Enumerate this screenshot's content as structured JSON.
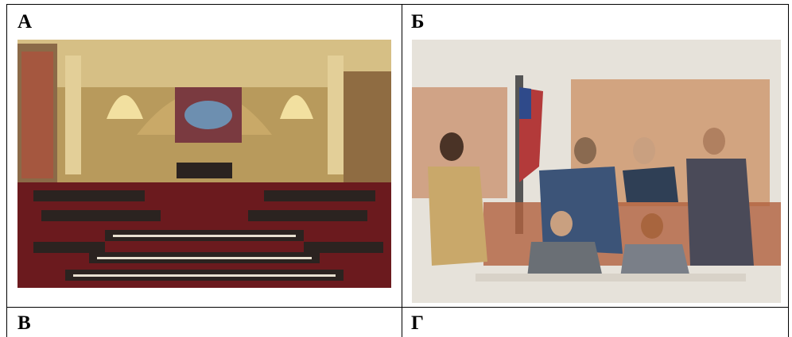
{
  "table": {
    "rows": [
      [
        "А",
        "Б"
      ],
      [
        "В",
        "Г"
      ]
    ]
  }
}
